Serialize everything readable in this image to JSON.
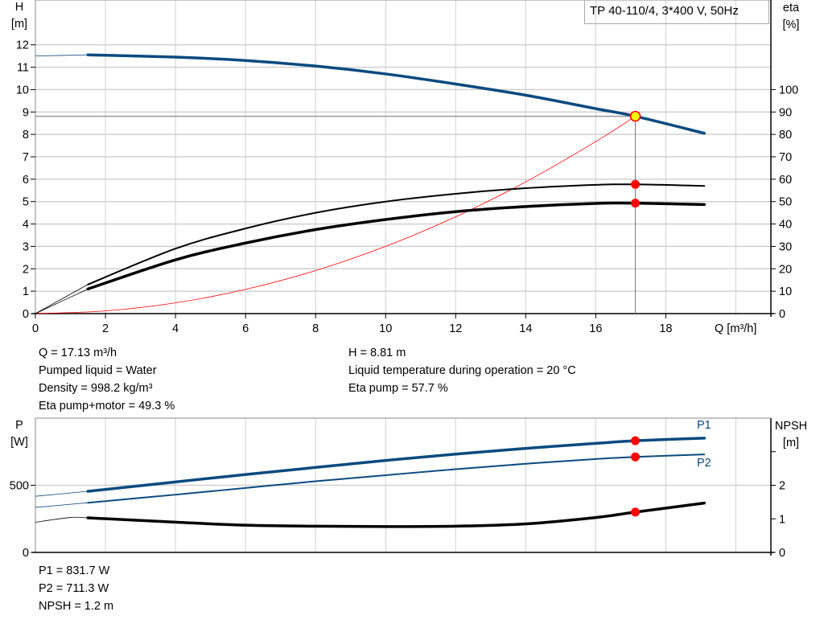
{
  "chart_data": [
    {
      "type": "line",
      "title": "TP 40-110/4, 3*400 V, 50Hz",
      "xlabel": "Q [m³/h]",
      "ylabel": "H\n[m]",
      "y2label": "eta\n[%]",
      "ylabel_top": "H",
      "ylabel_unit": "[m]",
      "y2label_top": "eta",
      "y2label_unit": "[%]",
      "xlim": [
        0,
        21
      ],
      "ylim": [
        0,
        14
      ],
      "y2lim": [
        0,
        140
      ],
      "x_ticks": [
        0,
        2,
        4,
        6,
        8,
        10,
        12,
        14,
        16,
        18
      ],
      "y_ticks": [
        0,
        1,
        2,
        3,
        4,
        5,
        6,
        7,
        8,
        9,
        10,
        11,
        12
      ],
      "y2_ticks": [
        0,
        10,
        20,
        30,
        40,
        50,
        60,
        70,
        80,
        90,
        100
      ],
      "grid": true,
      "duty_point": {
        "Q": 17.13,
        "H": 8.81,
        "eta_pump": 57.7,
        "eta_total": 49.3
      },
      "series": [
        {
          "id": "H",
          "axis": "y",
          "color": "#0a4a80",
          "x": [
            0,
            1.5,
            4,
            6,
            8,
            10,
            12,
            14,
            16,
            17.13,
            19.1
          ],
          "y": [
            11.5,
            11.55,
            11.45,
            11.3,
            11.05,
            10.7,
            10.25,
            9.75,
            9.15,
            8.81,
            8.05
          ]
        },
        {
          "id": "eta_pump",
          "axis": "y2",
          "color": "#000000",
          "x": [
            0,
            1.5,
            4,
            6,
            8,
            10,
            12,
            14,
            16,
            17.13,
            19.1
          ],
          "y": [
            0,
            13,
            29,
            38,
            45,
            50,
            53.5,
            56,
            57.5,
            57.7,
            57
          ]
        },
        {
          "id": "eta_total",
          "axis": "y2",
          "color": "#000000",
          "x": [
            0,
            1.5,
            4,
            6,
            8,
            10,
            12,
            14,
            16,
            17.13,
            19.1
          ],
          "y": [
            0,
            11,
            24,
            31.5,
            37.5,
            42,
            45.5,
            47.8,
            49.2,
            49.3,
            48.7
          ]
        },
        {
          "id": "system",
          "axis": "y",
          "color": "#ff0000",
          "x": [
            0,
            2,
            4,
            6,
            8,
            10,
            12,
            14,
            16,
            17.13
          ],
          "y": [
            0,
            0.12,
            0.48,
            1.08,
            1.92,
            3.0,
            4.32,
            5.88,
            7.68,
            8.81
          ]
        }
      ]
    },
    {
      "type": "line",
      "ylabel_top": "P",
      "ylabel_unit": "[W]",
      "y2label_top": "NPSH",
      "y2label_unit": "[m]",
      "xlim": [
        0,
        21
      ],
      "ylim": [
        0,
        1000
      ],
      "y2lim": [
        0,
        4
      ],
      "y_ticks": [
        0,
        500
      ],
      "y2_ticks": [
        0,
        1,
        2
      ],
      "y2_minor_ticks": [
        3
      ],
      "grid": true,
      "duty_point": {
        "Q": 17.13,
        "P1": 831.7,
        "P2": 711.3,
        "NPSH": 1.2
      },
      "series": [
        {
          "id": "P1",
          "name": "P1",
          "axis": "y",
          "color": "#0a4a80",
          "x": [
            0,
            1.5,
            4,
            6,
            8,
            10,
            12,
            14,
            16,
            17.13,
            19.1
          ],
          "y": [
            418,
            455,
            525,
            580,
            633,
            685,
            732,
            775,
            812,
            831.7,
            851
          ]
        },
        {
          "id": "P2",
          "name": "P2",
          "axis": "y",
          "color": "#0a4a80",
          "x": [
            0,
            1.5,
            4,
            6,
            8,
            10,
            12,
            14,
            16,
            17.13,
            19.1
          ],
          "y": [
            335,
            370,
            430,
            480,
            530,
            575,
            620,
            660,
            695,
            711.3,
            730
          ]
        },
        {
          "id": "NPSH",
          "axis": "y2",
          "color": "#000000",
          "x": [
            0,
            1,
            1.5,
            4,
            6,
            8,
            10,
            12,
            14,
            16,
            17.13,
            19.1
          ],
          "y": [
            0.9,
            1.04,
            1.03,
            0.9,
            0.81,
            0.78,
            0.77,
            0.78,
            0.85,
            1.04,
            1.2,
            1.47
          ]
        }
      ]
    }
  ],
  "info_top": {
    "left": [
      "Q = 17.13 m³/h",
      "Pumped liquid = Water",
      "Density = 998.2 kg/m³",
      "Eta pump+motor = 49.3 %"
    ],
    "right": [
      "H = 8.81 m",
      "Liquid temperature during operation = 20 °C",
      "Eta pump = 57.7 %"
    ]
  },
  "info_bottom": [
    "P1 = 831.7 W",
    "P2 = 711.3 W",
    "NPSH = 1.2 m"
  ],
  "colors": {
    "blue": "#0a4a80",
    "duty": "#ff0000",
    "duty_fill": "#ffff00",
    "grid": "#d0d0d0"
  }
}
